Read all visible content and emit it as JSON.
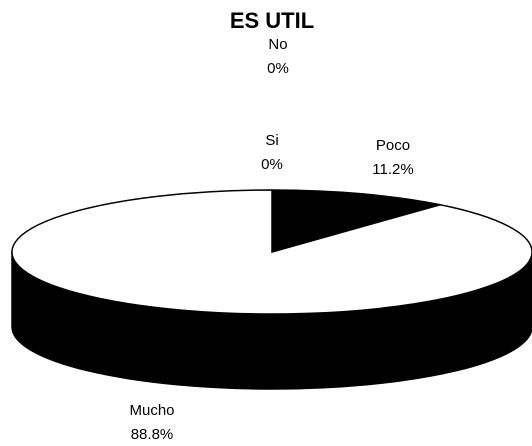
{
  "chart_data": {
    "type": "pie",
    "title": "ES UTIL",
    "categories": [
      "No",
      "Si",
      "Poco",
      "Mucho"
    ],
    "values": [
      0,
      0,
      11.2,
      88.8
    ],
    "value_labels": [
      "0%",
      "0%",
      "11.2%",
      "88.8%"
    ],
    "colors": [
      "#808080",
      "#c0c0c0",
      "#000000",
      "#ffffff"
    ]
  }
}
